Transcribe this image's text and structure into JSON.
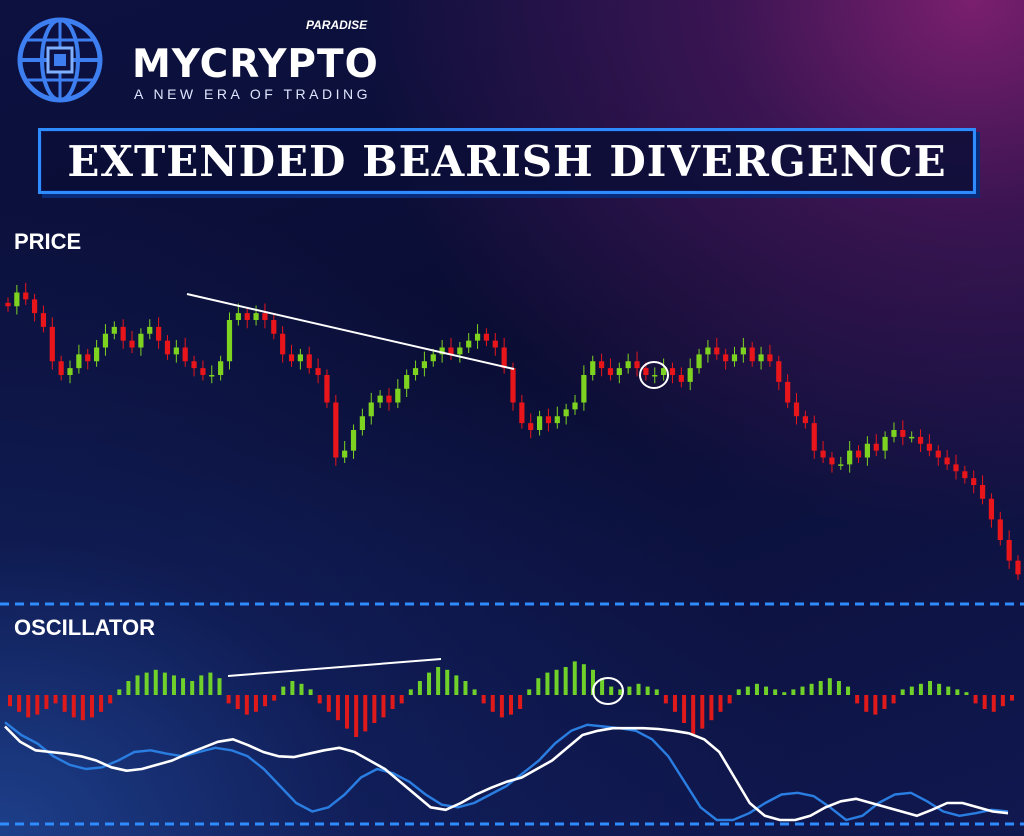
{
  "brand": {
    "name_part1": "MY",
    "name_part2": "CRYPTO",
    "superscript": "PARADISE",
    "tagline": "A NEW ERA OF TRADING"
  },
  "title": "EXTENDED BEARISH DIVERGENCE",
  "colors": {
    "bull": "#7ed321",
    "bear": "#e8151b",
    "line_white": "#ffffff",
    "line_blue": "#2a7de1",
    "divider": "#2f8cff",
    "histogram_pos": "#6fd12a",
    "histogram_neg": "#e01a1a"
  },
  "chart_data": [
    {
      "type": "candlestick",
      "title": "PRICE",
      "annotations": [
        "descending trendline across highs",
        "circled candle near local high"
      ],
      "close": [
        94,
        96,
        95,
        93,
        91,
        86,
        84,
        85,
        87,
        86,
        88,
        90,
        91,
        89,
        88,
        90,
        91,
        89,
        87,
        88,
        86,
        85,
        84,
        84,
        86,
        92,
        93,
        92,
        93,
        92,
        90,
        87,
        86,
        87,
        85,
        84,
        80,
        72,
        73,
        76,
        78,
        80,
        81,
        80,
        82,
        84,
        85,
        86,
        87,
        88,
        87,
        88,
        89,
        90,
        89,
        88,
        85,
        80,
        77,
        76,
        78,
        77,
        78,
        79,
        80,
        84,
        86,
        85,
        84,
        85,
        86,
        85,
        84,
        84,
        85,
        84,
        83,
        85,
        87,
        88,
        87,
        86,
        87,
        88,
        86,
        87,
        86,
        83,
        80,
        78,
        77,
        73,
        72,
        71,
        71,
        73,
        72,
        74,
        73,
        75,
        76,
        75,
        75,
        74,
        73,
        72,
        71,
        70,
        69,
        68,
        66,
        63,
        60,
        57,
        55
      ]
    },
    {
      "type": "histogram+lines",
      "title": "OSCILLATOR",
      "annotations": [
        "rising trendline across histogram peaks",
        "circled crossover"
      ],
      "histogram": [
        -4,
        -6,
        -8,
        -7,
        -5,
        -3,
        -6,
        -8,
        -9,
        -8,
        -6,
        -3,
        2,
        5,
        7,
        8,
        9,
        8,
        7,
        6,
        5,
        7,
        8,
        6,
        -3,
        -5,
        -7,
        -6,
        -4,
        -2,
        3,
        5,
        4,
        2,
        -3,
        -6,
        -9,
        -12,
        -15,
        -13,
        -10,
        -8,
        -5,
        -3,
        2,
        5,
        8,
        10,
        9,
        7,
        5,
        2,
        -3,
        -6,
        -8,
        -7,
        -5,
        2,
        6,
        8,
        9,
        10,
        12,
        11,
        9,
        6,
        3,
        2,
        3,
        4,
        3,
        2,
        -3,
        -6,
        -10,
        -14,
        -12,
        -9,
        -6,
        -3,
        2,
        3,
        4,
        3,
        2,
        1,
        2,
        3,
        4,
        5,
        6,
        5,
        3,
        -3,
        -6,
        -7,
        -5,
        -3,
        2,
        3,
        4,
        5,
        4,
        3,
        2,
        1,
        -3,
        -5,
        -6,
        -4,
        -2
      ],
      "series": [
        {
          "values": [
            10,
            -8,
            -18,
            -20,
            -22,
            -25,
            -30,
            -38,
            -42,
            -40,
            -35,
            -30,
            -22,
            -15,
            -8,
            -5,
            -12,
            -20,
            -25,
            -26,
            -22,
            -18,
            -15,
            -20,
            -30,
            -40,
            -55,
            -70,
            -85,
            -88,
            -80,
            -70,
            -62,
            -55,
            -50,
            -40,
            -30,
            -15,
            0,
            5,
            8,
            8,
            8,
            7,
            5,
            2,
            -5,
            -20,
            -50,
            -80,
            -95,
            -100,
            -100,
            -95,
            -85,
            -78,
            -75,
            -80,
            -85,
            -90,
            -95,
            -88,
            -80,
            -80,
            -85,
            -90,
            -92
          ]
        },
        {
          "values": [
            15,
            0,
            -10,
            -25,
            -35,
            -40,
            -38,
            -30,
            -20,
            -18,
            -22,
            -25,
            -20,
            -15,
            -18,
            -25,
            -40,
            -60,
            -80,
            -90,
            -85,
            -70,
            -50,
            -40,
            -45,
            -55,
            -70,
            -82,
            -85,
            -80,
            -70,
            -60,
            -45,
            -30,
            -10,
            5,
            12,
            10,
            8,
            5,
            -5,
            -25,
            -55,
            -85,
            -100,
            -100,
            -92,
            -80,
            -70,
            -68,
            -72,
            -85,
            -100,
            -95,
            -80,
            -70,
            -68,
            -78,
            -90,
            -95,
            -92,
            -88,
            -90
          ]
        }
      ]
    }
  ]
}
